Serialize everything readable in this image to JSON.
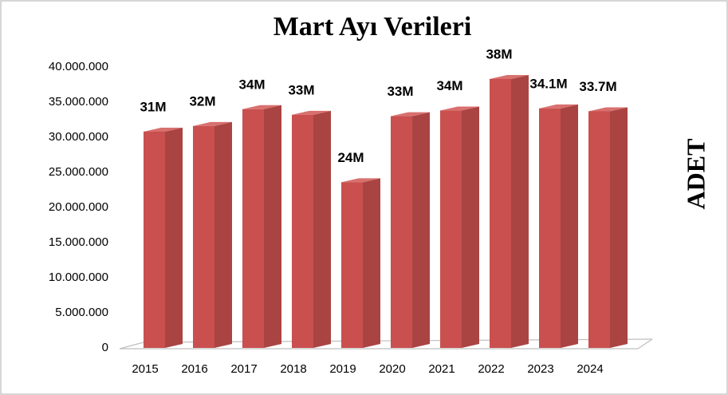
{
  "chart_data": {
    "type": "bar",
    "title": "Mart Ayı Verileri",
    "y_label": "ADET",
    "categories": [
      "2015",
      "2016",
      "2017",
      "2018",
      "2019",
      "2020",
      "2021",
      "2022",
      "2023",
      "2024"
    ],
    "values": [
      30800000,
      31600000,
      34000000,
      33200000,
      23600000,
      33000000,
      33800000,
      38300000,
      34100000,
      33700000
    ],
    "value_labels": [
      "31M",
      "32M",
      "34M",
      "33M",
      "24M",
      "33M",
      "34M",
      "38M",
      "34.1M",
      "33.7M"
    ],
    "color": "#c9504f",
    "ylim": [
      0,
      40000000
    ],
    "yticks": [
      0,
      {
        "value": 5000000,
        "label": "5.000.000"
      },
      {
        "value": 10000000,
        "label": "10.000.000"
      },
      {
        "value": 15000000,
        "label": "15.000.000"
      },
      {
        "value": 20000000,
        "label": "20.000.000"
      },
      {
        "value": 25000000,
        "label": "25.000.000"
      },
      {
        "value": 30000000,
        "label": "30.000.000"
      },
      {
        "value": 35000000,
        "label": "35.000.000"
      },
      {
        "value": 40000000,
        "label": "40.000.000"
      }
    ],
    "grid": false
  }
}
